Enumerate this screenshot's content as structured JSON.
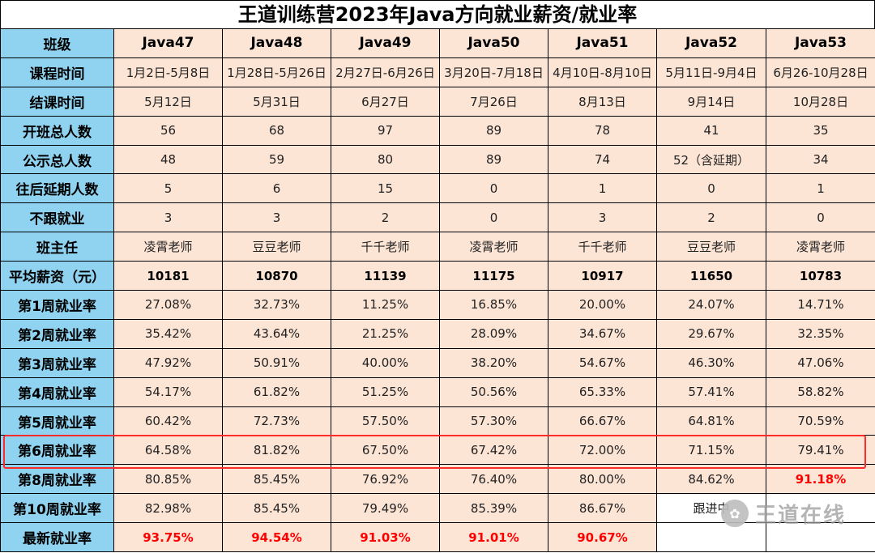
{
  "title": "王道训练营2023年Java方向就业薪资/就业率",
  "header": {
    "row_label": "班级",
    "classes": [
      "Java47",
      "Java48",
      "Java49",
      "Java50",
      "Java51",
      "Java52",
      "Java53"
    ]
  },
  "rows": [
    {
      "label": "课程时间",
      "style": "normal",
      "cells": [
        "1月2日-5月8日",
        "1月28日-5月26日",
        "2月27日-6月26日",
        "3月20日-7月18日",
        "4月10日-8月10日",
        "5月11日-9月4日",
        "6月26-10月28日"
      ]
    },
    {
      "label": "结课时间",
      "style": "normal",
      "cells": [
        "5月12日",
        "5月31日",
        "6月27日",
        "7月26日",
        "8月13日",
        "9月14日",
        "10月28日"
      ]
    },
    {
      "label": "开班总人数",
      "style": "normal",
      "cells": [
        "56",
        "68",
        "97",
        "89",
        "78",
        "41",
        "35"
      ]
    },
    {
      "label": "公示总人数",
      "style": "normal",
      "cells": [
        "48",
        "59",
        "80",
        "89",
        "74",
        "52（含延期）",
        "34"
      ]
    },
    {
      "label": "往后延期人数",
      "style": "normal",
      "cells": [
        "5",
        "6",
        "15",
        "0",
        "1",
        "0",
        "1"
      ]
    },
    {
      "label": "不跟就业",
      "style": "normal",
      "cells": [
        "3",
        "3",
        "2",
        "0",
        "3",
        "2",
        "0"
      ]
    },
    {
      "label": "班主任",
      "style": "normal",
      "cells": [
        "凌霄老师",
        "豆豆老师",
        "千千老师",
        "凌霄老师",
        "千千老师",
        "豆豆老师",
        "凌霄老师"
      ]
    },
    {
      "label": "平均薪资（元）",
      "style": "bold",
      "cells": [
        "10181",
        "10870",
        "11139",
        "11175",
        "10917",
        "11650",
        "10783"
      ]
    },
    {
      "label": "第1周就业率",
      "style": "normal",
      "cells": [
        "27.08%",
        "32.73%",
        "11.25%",
        "16.85%",
        "20.00%",
        "24.07%",
        "14.71%"
      ]
    },
    {
      "label": "第2周就业率",
      "style": "normal",
      "cells": [
        "35.42%",
        "43.64%",
        "21.25%",
        "28.09%",
        "34.67%",
        "29.67%",
        "32.35%"
      ]
    },
    {
      "label": "第3周就业率",
      "style": "normal",
      "cells": [
        "47.92%",
        "50.91%",
        "40.00%",
        "38.20%",
        "54.67%",
        "46.30%",
        "47.06%"
      ]
    },
    {
      "label": "第4周就业率",
      "style": "normal",
      "cells": [
        "54.17%",
        "61.82%",
        "51.25%",
        "50.56%",
        "65.33%",
        "57.41%",
        "58.82%"
      ]
    },
    {
      "label": "第5周就业率",
      "style": "normal",
      "cells": [
        "60.42%",
        "72.73%",
        "57.50%",
        "57.30%",
        "66.67%",
        "64.81%",
        "70.59%"
      ]
    },
    {
      "label": "第6周就业率",
      "style": "normal",
      "cells": [
        "64.58%",
        "81.82%",
        "67.50%",
        "67.42%",
        "72.00%",
        "71.15%",
        "79.41%"
      ]
    },
    {
      "label": "第8周就业率",
      "style": "normal",
      "cells": [
        "80.85%",
        "85.45%",
        "76.92%",
        "76.40%",
        "80.00%",
        "84.62%",
        "91.18%"
      ],
      "red": [
        6
      ]
    },
    {
      "label": "第10周就业率",
      "style": "normal",
      "cells": [
        "82.98%",
        "85.45%",
        "79.49%",
        "85.39%",
        "86.67%",
        "跟进中",
        ""
      ],
      "blank": [
        5,
        6
      ]
    },
    {
      "label": "最新就业率",
      "style": "normal",
      "cells": [
        "93.75%",
        "94.54%",
        "91.03%",
        "91.01%",
        "90.67%",
        "",
        ""
      ],
      "red": [
        0,
        1,
        2,
        3,
        4
      ],
      "blank": [
        5,
        6
      ]
    }
  ],
  "watermark": {
    "text": "王道在线",
    "icon": "wechat-icon"
  },
  "colors": {
    "label_bg": "#8fd3f0",
    "cell_bg": "#fde5d6",
    "red_text": "#ff0000",
    "highlight": "#ff2a2a"
  }
}
